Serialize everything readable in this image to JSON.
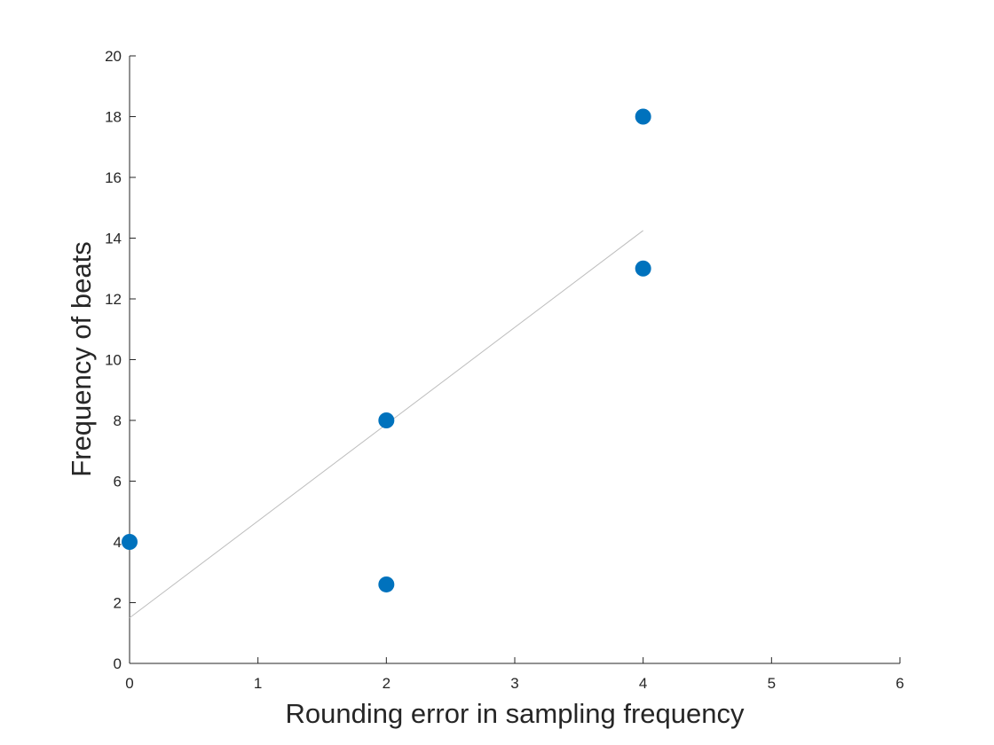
{
  "chart_data": {
    "type": "scatter",
    "title": "",
    "xlabel": "Rounding error in sampling frequency",
    "ylabel": "Frequency of beats",
    "xlim": [
      0,
      6
    ],
    "ylim": [
      0,
      20
    ],
    "xticks": [
      0,
      1,
      2,
      3,
      4,
      5,
      6
    ],
    "yticks": [
      0,
      2,
      4,
      6,
      8,
      10,
      12,
      14,
      16,
      18,
      20
    ],
    "grid": false,
    "series": [
      {
        "points": [
          {
            "x": 0,
            "y": 4
          },
          {
            "x": 2,
            "y": 8
          },
          {
            "x": 2,
            "y": 2.6
          },
          {
            "x": 4,
            "y": 18
          },
          {
            "x": 4,
            "y": 13
          }
        ],
        "color": "#0072BD"
      }
    ],
    "fit_line": {
      "x": [
        0,
        4
      ],
      "y": [
        1.5,
        14.25
      ],
      "color": "#bdbdbd"
    }
  }
}
